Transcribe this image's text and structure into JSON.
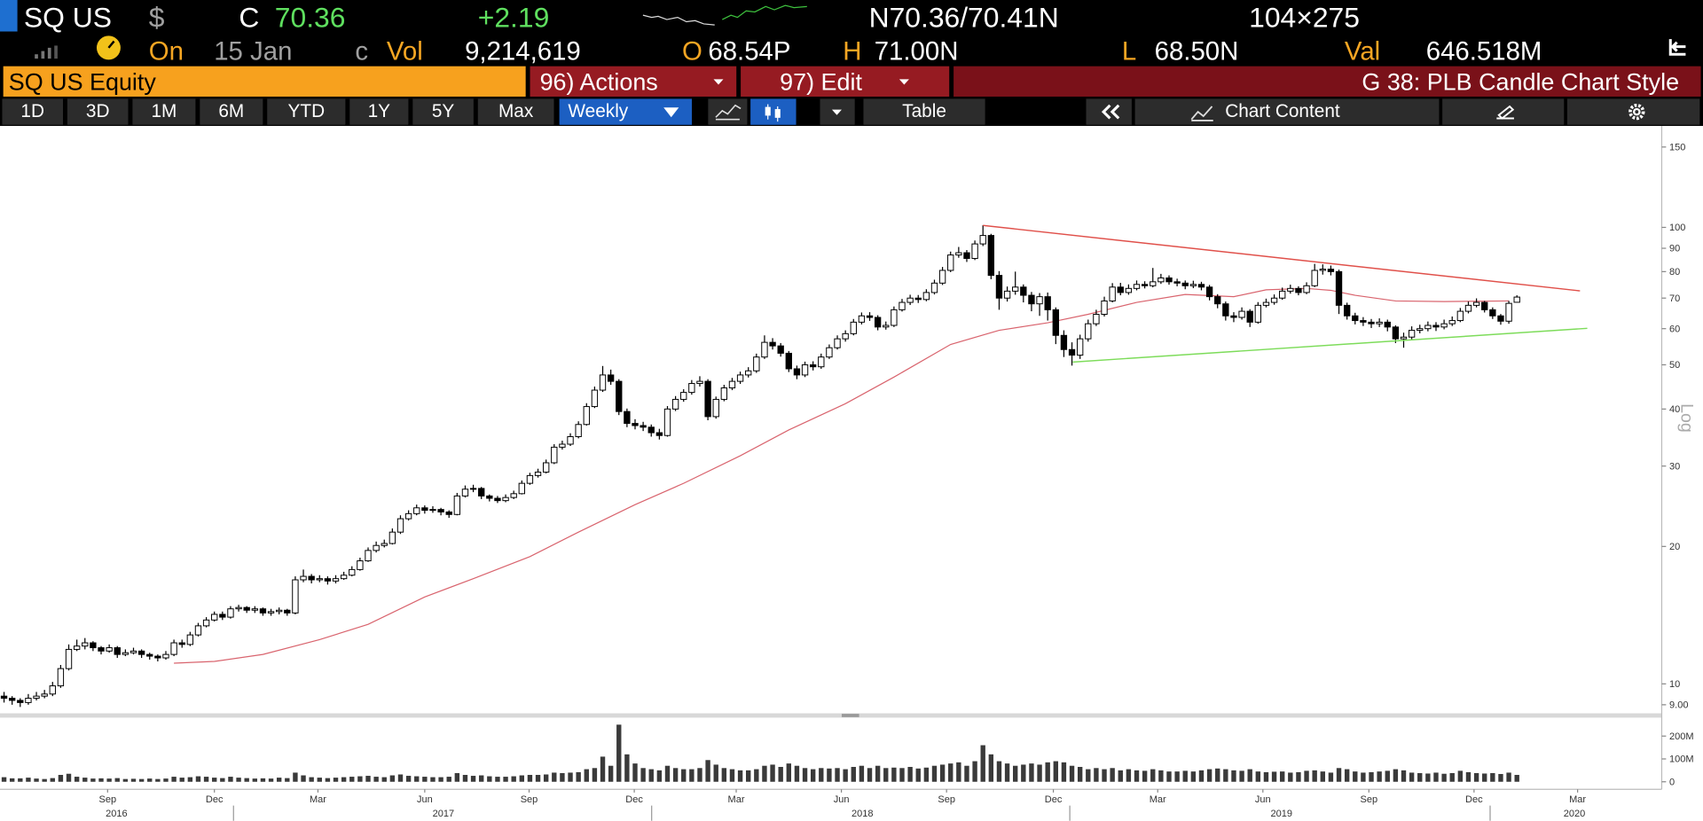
{
  "header": {
    "ticker": "SQ US",
    "currency": "$",
    "last_label": "C",
    "last": "70.36",
    "change": "+2.19",
    "bid_ask": "N70.36/70.41N",
    "size": "104×275",
    "date_label": "On",
    "date": "15 Jan",
    "date_suffix": "c",
    "volume_label": "Vol",
    "volume": "9,214,619",
    "open_label": "O",
    "open": "68.54P",
    "high_label": "H",
    "high": "71.00N",
    "low_label": "L",
    "low": "68.50N",
    "value_label": "Val",
    "value": "646.518M"
  },
  "toolbar": {
    "security": "SQ US Equity",
    "actions": "96) Actions",
    "edit": "97) Edit",
    "style": "G 38: PLB Candle Chart Style",
    "ranges": [
      "1D",
      "3D",
      "1M",
      "6M",
      "YTD",
      "1Y",
      "5Y",
      "Max"
    ],
    "frequency": "Weekly",
    "table": "Table",
    "chart_content": "Chart Content"
  },
  "chart_data": {
    "type": "candlestick",
    "log_scale": true,
    "y_axis_label": "Log",
    "colors": {
      "up": "#ffffff",
      "down": "#000000"
    },
    "xlim": [
      -0.5,
      204.9
    ],
    "xticks": [
      {
        "value": 12.8,
        "label": "Sep"
      },
      {
        "value": 26,
        "label": "Dec"
      },
      {
        "value": 38.8,
        "label": "Mar"
      },
      {
        "value": 52,
        "label": "Jun"
      },
      {
        "value": 64.9,
        "label": "Sep"
      },
      {
        "value": 77.9,
        "label": "Dec"
      },
      {
        "value": 90.5,
        "label": "Mar"
      },
      {
        "value": 103.5,
        "label": "Jun"
      },
      {
        "value": 116.5,
        "label": "Sep"
      },
      {
        "value": 129.7,
        "label": "Dec"
      },
      {
        "value": 142.6,
        "label": "Mar"
      },
      {
        "value": 155.6,
        "label": "Jun"
      },
      {
        "value": 168.7,
        "label": "Sep"
      },
      {
        "value": 181.7,
        "label": "Dec"
      },
      {
        "value": 194.5,
        "label": "Mar"
      }
    ],
    "year_ticks": [
      {
        "value": 13.9,
        "label": "2016"
      },
      {
        "value": 54.3,
        "label": "2017"
      },
      {
        "value": 106.1,
        "label": "2018"
      },
      {
        "value": 157.9,
        "label": "2019"
      },
      {
        "value": 194.1,
        "label": "2020"
      }
    ],
    "ylim": [
      8.62,
      165
    ],
    "yticks": [
      {
        "value": 9,
        "label": "9.00"
      },
      10,
      20,
      30,
      40,
      50,
      60,
      70,
      80,
      90,
      100,
      150
    ],
    "open": [
      9.4,
      9.3,
      9.2,
      9.1,
      9.3,
      9.4,
      9.5,
      9.9,
      10.8,
      11.9,
      12.1,
      12.3,
      12.0,
      11.8,
      12.0,
      11.6,
      11.7,
      11.8,
      11.6,
      11.5,
      11.4,
      11.6,
      12.3,
      12.2,
      12.8,
      13.4,
      13.8,
      14.2,
      14.0,
      14.6,
      14.7,
      14.5,
      14.6,
      14.3,
      14.4,
      14.5,
      14.3,
      16.9,
      17.2,
      16.9,
      17.0,
      16.8,
      17.0,
      17.3,
      17.8,
      18.6,
      19.6,
      20.1,
      20.3,
      21.5,
      23.0,
      23.6,
      24.3,
      24.0,
      24.1,
      23.8,
      23.5,
      25.8,
      26.7,
      26.8,
      25.8,
      25.5,
      25.2,
      25.6,
      26.1,
      27.5,
      28.6,
      29.1,
      30.5,
      33.0,
      33.5,
      34.8,
      37.0,
      40.5,
      44.0,
      47.5,
      46.0,
      39.5,
      37.2,
      36.8,
      36.5,
      35.5,
      35.0,
      40.0,
      42.0,
      43.5,
      45.5,
      46.0,
      38.5,
      42.0,
      44.5,
      46.0,
      47.5,
      48.5,
      52.0,
      56.0,
      55.0,
      53.0,
      49.0,
      47.5,
      50.0,
      49.5,
      52.0,
      54.5,
      57.0,
      58.5,
      62.0,
      64.0,
      63.5,
      60.5,
      61.0,
      66.0,
      68.5,
      70.0,
      69.5,
      72.0,
      75.5,
      80.5,
      87.0,
      88.0,
      85.5,
      92.0,
      96.0,
      78.5,
      70.0,
      72.5,
      74.0,
      71.0,
      68.0,
      70.5,
      66.0,
      58.0,
      54.0,
      52.5,
      57.0,
      61.5,
      64.5,
      69.0,
      74.0,
      72.0,
      73.5,
      75.0,
      74.5,
      76.0,
      77.5,
      76.0,
      75.5,
      74.5,
      75.0,
      74.0,
      70.5,
      68.0,
      64.0,
      63.5,
      65.5,
      62.0,
      67.5,
      68.5,
      70.0,
      72.5,
      73.5,
      72.0,
      74.5,
      80.5,
      81.0,
      80.0,
      67.5,
      64.0,
      62.5,
      62.0,
      61.5,
      62.0,
      60.5,
      57.0,
      57.5,
      59.5,
      60.0,
      61.0,
      60.5,
      61.5,
      62.5,
      65.5,
      67.5,
      68.5,
      66.0,
      64.0,
      62.3,
      68.54
    ],
    "high": [
      9.6,
      9.4,
      9.3,
      9.5,
      9.6,
      9.7,
      10.1,
      11.0,
      12.2,
      12.5,
      12.6,
      12.4,
      12.1,
      12.2,
      12.1,
      11.9,
      12.0,
      11.9,
      11.7,
      11.6,
      11.8,
      12.5,
      12.5,
      13.0,
      13.6,
      14.0,
      14.4,
      14.4,
      14.8,
      14.9,
      14.8,
      14.8,
      14.7,
      14.6,
      14.7,
      14.6,
      17.2,
      17.8,
      17.4,
      17.3,
      17.2,
      17.3,
      17.6,
      18.1,
      18.9,
      19.9,
      20.5,
      20.7,
      21.9,
      23.4,
      24.0,
      24.7,
      24.6,
      24.5,
      24.3,
      24.0,
      26.2,
      27.2,
      27.3,
      27.0,
      26.0,
      25.8,
      26.0,
      26.5,
      27.9,
      29.0,
      29.6,
      31.0,
      33.5,
      34.1,
      35.4,
      37.6,
      41.2,
      44.8,
      49.7,
      48.8,
      46.5,
      40.1,
      38.0,
      37.5,
      37.0,
      36.2,
      40.6,
      42.7,
      44.2,
      46.3,
      47.2,
      46.5,
      42.6,
      45.2,
      46.8,
      48.3,
      49.4,
      52.9,
      58.0,
      57.2,
      55.8,
      53.6,
      49.8,
      50.8,
      50.9,
      52.9,
      55.4,
      58.0,
      59.5,
      63.0,
      65.1,
      65.2,
      64.2,
      62.2,
      67.1,
      69.7,
      71.2,
      71.1,
      73.2,
      76.8,
      81.9,
      88.5,
      90.6,
      89.2,
      93.6,
      101.1,
      96.8,
      80.2,
      74.2,
      80.0,
      75.0,
      72.2,
      71.8,
      72.0,
      66.8,
      59.5,
      56.0,
      58.2,
      62.8,
      66.0,
      70.5,
      75.5,
      75.6,
      75.0,
      76.5,
      76.2,
      81.5,
      79.1,
      78.5,
      77.2,
      76.5,
      76.4,
      76.0,
      74.8,
      71.4,
      68.8,
      65.2,
      66.8,
      66.2,
      68.6,
      69.8,
      71.3,
      73.8,
      74.9,
      74.3,
      75.8,
      83.2,
      83.0,
      82.5,
      80.8,
      68.4,
      65.0,
      63.6,
      63.0,
      63.2,
      62.8,
      61.0,
      58.8,
      60.7,
      61.2,
      62.2,
      62.0,
      62.8,
      63.8,
      66.6,
      68.8,
      69.9,
      69.0,
      66.8,
      64.6,
      69.0,
      71.0
    ],
    "low": [
      9.1,
      9.0,
      8.9,
      9.0,
      9.2,
      9.3,
      9.4,
      9.8,
      10.7,
      11.8,
      11.9,
      11.8,
      11.6,
      11.7,
      11.4,
      11.5,
      11.6,
      11.4,
      11.3,
      11.2,
      11.3,
      11.5,
      12.0,
      12.1,
      12.7,
      13.3,
      13.7,
      13.8,
      13.9,
      14.4,
      14.3,
      14.3,
      14.1,
      14.1,
      14.2,
      14.1,
      14.2,
      16.7,
      16.6,
      16.7,
      16.5,
      16.6,
      16.9,
      17.2,
      17.7,
      18.5,
      19.4,
      19.9,
      20.2,
      21.3,
      22.8,
      23.4,
      23.6,
      23.7,
      23.4,
      23.1,
      23.4,
      25.6,
      26.3,
      25.4,
      25.1,
      24.9,
      25.0,
      25.4,
      26.0,
      27.3,
      28.3,
      28.9,
      30.3,
      32.6,
      33.2,
      34.5,
      36.8,
      40.2,
      43.6,
      45.2,
      38.8,
      36.5,
      36.1,
      35.8,
      34.8,
      34.3,
      34.8,
      39.6,
      41.5,
      43.0,
      44.8,
      37.8,
      38.1,
      41.6,
      44.0,
      45.4,
      46.9,
      48.0,
      51.5,
      54.0,
      52.1,
      48.2,
      46.5,
      47.0,
      48.6,
      49.0,
      51.5,
      54.0,
      56.2,
      58.0,
      61.3,
      62.4,
      59.5,
      59.7,
      60.5,
      65.4,
      67.6,
      68.3,
      68.9,
      71.3,
      74.8,
      79.8,
      85.8,
      84.0,
      84.8,
      91.0,
      77.0,
      66.0,
      68.8,
      71.2,
      68.5,
      65.5,
      64.0,
      62.5,
      55.5,
      52.0,
      49.8,
      51.5,
      56.2,
      60.8,
      63.8,
      68.5,
      71.0,
      71.2,
      72.8,
      73.5,
      73.9,
      75.2,
      74.9,
      74.3,
      73.2,
      73.6,
      72.8,
      69.2,
      66.5,
      62.5,
      62.0,
      62.8,
      60.5,
      61.5,
      66.8,
      67.7,
      69.4,
      71.6,
      71.0,
      71.4,
      74.0,
      78.8,
      78.5,
      64.6,
      62.8,
      61.3,
      60.8,
      60.2,
      60.5,
      59.2,
      55.8,
      54.5,
      56.9,
      58.6,
      59.2,
      59.3,
      59.8,
      60.8,
      62.0,
      64.8,
      66.8,
      65.1,
      63.0,
      61.2,
      61.5,
      68.5
    ],
    "close": [
      9.3,
      9.2,
      9.1,
      9.3,
      9.4,
      9.5,
      9.9,
      10.8,
      11.9,
      12.1,
      12.3,
      12.0,
      11.8,
      12.0,
      11.6,
      11.7,
      11.8,
      11.6,
      11.5,
      11.4,
      11.6,
      12.3,
      12.2,
      12.8,
      13.4,
      13.8,
      14.2,
      14.0,
      14.6,
      14.7,
      14.5,
      14.6,
      14.3,
      14.4,
      14.5,
      14.3,
      16.9,
      17.2,
      16.9,
      17.0,
      16.8,
      17.0,
      17.3,
      17.8,
      18.6,
      19.6,
      20.1,
      20.3,
      21.5,
      23.0,
      23.6,
      24.3,
      24.0,
      24.1,
      23.8,
      23.5,
      25.8,
      26.7,
      26.8,
      25.8,
      25.5,
      25.2,
      25.6,
      26.1,
      27.5,
      28.6,
      29.1,
      30.5,
      33.0,
      33.5,
      34.8,
      37.0,
      40.5,
      44.0,
      47.5,
      46.0,
      39.5,
      37.2,
      36.8,
      36.5,
      35.5,
      35.0,
      40.0,
      42.0,
      43.5,
      45.5,
      46.0,
      38.5,
      42.0,
      44.5,
      46.0,
      47.5,
      48.5,
      52.0,
      56.0,
      55.0,
      53.0,
      49.0,
      47.5,
      50.0,
      49.5,
      52.0,
      54.5,
      57.0,
      58.5,
      62.0,
      64.0,
      63.5,
      60.5,
      61.0,
      66.0,
      68.5,
      70.0,
      69.5,
      72.0,
      75.5,
      80.5,
      87.0,
      88.0,
      85.5,
      92.0,
      96.0,
      78.5,
      70.0,
      72.5,
      74.0,
      71.0,
      68.0,
      70.5,
      66.0,
      58.0,
      54.0,
      52.5,
      57.0,
      61.5,
      64.5,
      69.0,
      74.0,
      72.0,
      73.5,
      75.0,
      74.5,
      76.0,
      77.5,
      76.0,
      75.5,
      74.5,
      75.0,
      74.0,
      70.5,
      68.0,
      64.0,
      63.5,
      65.5,
      62.0,
      67.5,
      68.5,
      70.0,
      72.5,
      73.5,
      72.0,
      74.5,
      80.5,
      81.0,
      80.0,
      67.5,
      64.0,
      62.5,
      62.0,
      61.5,
      62.0,
      60.5,
      57.0,
      57.5,
      59.5,
      60.0,
      61.0,
      60.5,
      61.5,
      62.5,
      65.5,
      67.5,
      68.5,
      66.0,
      64.0,
      62.3,
      68.17,
      70.36
    ],
    "moving_average": {
      "color": "#d9646e",
      "x": [
        21,
        26,
        32,
        39,
        45,
        52,
        58,
        65,
        71,
        78,
        84,
        91,
        97,
        104,
        110,
        117,
        123,
        129,
        134,
        140,
        146,
        152,
        156,
        161,
        164,
        167,
        172,
        178,
        186
      ],
      "values": [
        11.1,
        11.2,
        11.6,
        12.5,
        13.5,
        15.5,
        17.0,
        19.0,
        21.5,
        24.7,
        27.5,
        31.6,
        36.0,
        41.1,
        47.0,
        55.4,
        59.5,
        61.8,
        64.5,
        68.5,
        71.3,
        70.5,
        73.0,
        73.5,
        72.8,
        71.0,
        69.0,
        68.8,
        69.0
      ]
    },
    "trendlines": [
      {
        "color": "#e0504a",
        "x": [
          121,
          194.8
        ],
        "values": [
          101,
          72.6
        ]
      },
      {
        "color": "#7ddc5a",
        "x": [
          132.1,
          195.7
        ],
        "values": [
          50.7,
          60.1
        ]
      }
    ],
    "volume": {
      "color": "#3a3a3a",
      "ylim": [
        -33,
        276
      ],
      "yticks": [
        0,
        {
          "value": 100,
          "label": "100M"
        },
        {
          "value": 200,
          "label": "200M"
        }
      ],
      "values": [
        20,
        15,
        15,
        18,
        14,
        12,
        16,
        30,
        35,
        22,
        18,
        14,
        15,
        14,
        16,
        12,
        13,
        12,
        14,
        12,
        14,
        22,
        18,
        20,
        24,
        22,
        18,
        16,
        22,
        18,
        16,
        14,
        15,
        14,
        18,
        16,
        40,
        28,
        20,
        18,
        16,
        18,
        20,
        22,
        24,
        26,
        22,
        20,
        28,
        32,
        26,
        24,
        22,
        20,
        20,
        22,
        38,
        30,
        26,
        28,
        24,
        22,
        22,
        24,
        28,
        30,
        30,
        32,
        40,
        38,
        40,
        42,
        55,
        60,
        110,
        70,
        250,
        120,
        80,
        60,
        55,
        50,
        70,
        60,
        55,
        55,
        60,
        95,
        75,
        60,
        55,
        50,
        50,
        55,
        70,
        75,
        65,
        80,
        70,
        60,
        55,
        60,
        58,
        60,
        55,
        65,
        70,
        60,
        70,
        60,
        62,
        60,
        65,
        58,
        62,
        70,
        75,
        80,
        85,
        70,
        90,
        160,
        120,
        90,
        80,
        70,
        75,
        80,
        75,
        85,
        90,
        85,
        70,
        65,
        55,
        60,
        55,
        60,
        50,
        55,
        50,
        48,
        55,
        50,
        45,
        45,
        48,
        45,
        50,
        55,
        58,
        55,
        50,
        48,
        55,
        45,
        42,
        44,
        45,
        40,
        42,
        48,
        50,
        45,
        40,
        60,
        55,
        45,
        40,
        42,
        45,
        48,
        55,
        50,
        40,
        38,
        36,
        40,
        35,
        38,
        48,
        42,
        38,
        36,
        38,
        34,
        40,
        30
      ]
    }
  }
}
